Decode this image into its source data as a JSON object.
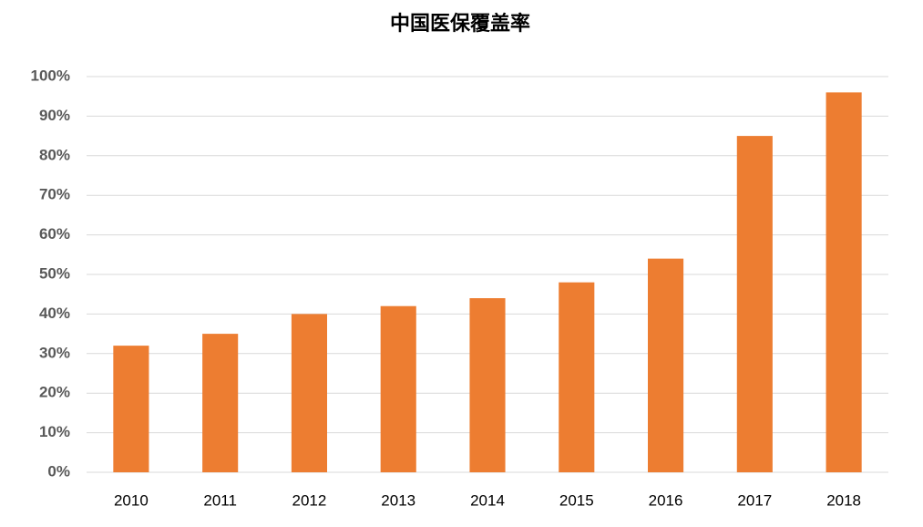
{
  "chart_data": {
    "type": "bar",
    "title": "中国医保覆盖率",
    "categories": [
      "2010",
      "2011",
      "2012",
      "2013",
      "2014",
      "2015",
      "2016",
      "2017",
      "2018"
    ],
    "values": [
      32,
      35,
      40,
      42,
      44,
      48,
      54,
      85,
      96
    ],
    "color": "#ed7d31",
    "ylim": [
      0,
      100
    ],
    "yticks": [
      {
        "value": 0,
        "label": "0%"
      },
      {
        "value": 10,
        "label": "10%"
      },
      {
        "value": 20,
        "label": "20%"
      },
      {
        "value": 30,
        "label": "30%"
      },
      {
        "value": 40,
        "label": "40%"
      },
      {
        "value": 50,
        "label": "50%"
      },
      {
        "value": 60,
        "label": "60%"
      },
      {
        "value": 70,
        "label": "70%"
      },
      {
        "value": 80,
        "label": "80%"
      },
      {
        "value": 90,
        "label": "90%"
      },
      {
        "value": 100,
        "label": "100%"
      }
    ],
    "grid": true
  }
}
